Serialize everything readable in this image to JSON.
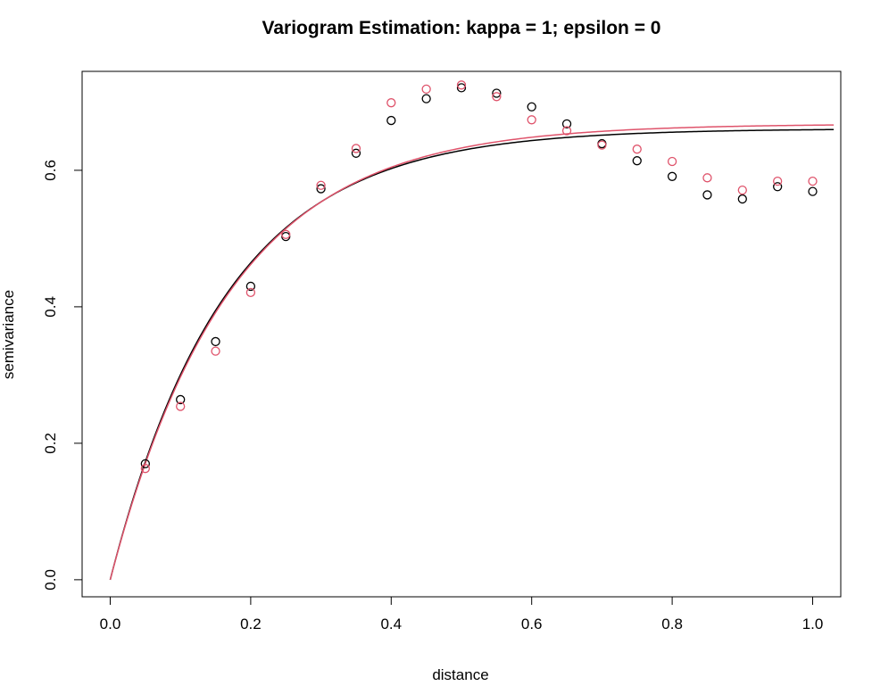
{
  "chart_data": {
    "type": "scatter",
    "title": "Variogram Estimation: kappa = 1; epsilon = 0",
    "xlabel": "distance",
    "ylabel": "semivariance",
    "xlim": [
      -0.04,
      1.04
    ],
    "ylim": [
      -0.025,
      0.745
    ],
    "x_ticks": [
      0.0,
      0.2,
      0.4,
      0.6,
      0.8,
      1.0
    ],
    "x_tick_labels": [
      "0.0",
      "0.2",
      "0.4",
      "0.6",
      "0.8",
      "1.0"
    ],
    "y_ticks": [
      0.0,
      0.2,
      0.4,
      0.6
    ],
    "y_tick_labels": [
      "0.0",
      "0.2",
      "0.4",
      "0.6"
    ],
    "grid": false,
    "legend": "none",
    "x": [
      0.05,
      0.1,
      0.15,
      0.2,
      0.25,
      0.3,
      0.35,
      0.4,
      0.45,
      0.5,
      0.55,
      0.6,
      0.65,
      0.7,
      0.75,
      0.8,
      0.85,
      0.9,
      0.95,
      1.0
    ],
    "series": [
      {
        "color": "#000000",
        "marker": "open-circle",
        "values": [
          0.17,
          0.264,
          0.349,
          0.43,
          0.503,
          0.573,
          0.625,
          0.673,
          0.705,
          0.721,
          0.713,
          0.693,
          0.668,
          0.639,
          0.614,
          0.591,
          0.564,
          0.558,
          0.576,
          0.569
        ]
      },
      {
        "color": "#DF536B",
        "marker": "open-circle",
        "values": [
          0.163,
          0.254,
          0.335,
          0.421,
          0.506,
          0.578,
          0.632,
          0.699,
          0.719,
          0.725,
          0.708,
          0.674,
          0.658,
          0.637,
          0.631,
          0.613,
          0.589,
          0.571,
          0.584,
          0.584
        ]
      }
    ],
    "fitted_curves": [
      {
        "color": "#000000",
        "model": "exponential",
        "sill": 0.661,
        "range": 0.165,
        "x_max": 1.03
      },
      {
        "color": "#DF536B",
        "model": "exponential",
        "sill": 0.668,
        "range": 0.17,
        "x_max": 1.03
      }
    ]
  }
}
